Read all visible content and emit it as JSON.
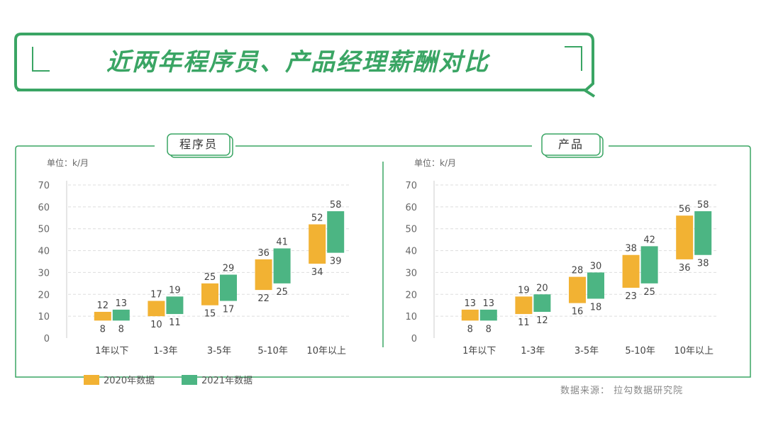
{
  "title": "近两年程序员、产品经理薪酬对比",
  "unit_label": "单位：k/月",
  "source": "数据来源：  拉勾数据研究院",
  "legend": [
    {
      "label": "2020年数据",
      "color": "#f2b233"
    },
    {
      "label": "2021年数据",
      "color": "#4cb583"
    }
  ],
  "colors": {
    "accent": "#3aa564",
    "series_2020": "#f2b233",
    "series_2021": "#4cb583",
    "grid": "#dddddd"
  },
  "chart_data": [
    {
      "type": "bar",
      "title": "程序员",
      "categories": [
        "1年以下",
        "1-3年",
        "3-5年",
        "5-10年",
        "10年以上"
      ],
      "ylim": [
        0,
        70
      ],
      "yticks": [
        0,
        10,
        20,
        30,
        40,
        50,
        60,
        70
      ],
      "ylabel": "单位：k/月",
      "series": [
        {
          "name": "2020年数据",
          "low": [
            8,
            10,
            15,
            22,
            34
          ],
          "high": [
            12,
            17,
            25,
            36,
            52
          ]
        },
        {
          "name": "2021年数据",
          "low": [
            8,
            11,
            17,
            25,
            39
          ],
          "high": [
            13,
            19,
            29,
            41,
            58
          ]
        }
      ]
    },
    {
      "type": "bar",
      "title": "产品",
      "categories": [
        "1年以下",
        "1-3年",
        "3-5年",
        "5-10年",
        "10年以上"
      ],
      "ylim": [
        0,
        70
      ],
      "yticks": [
        0,
        10,
        20,
        30,
        40,
        50,
        60,
        70
      ],
      "ylabel": "单位：k/月",
      "series": [
        {
          "name": "2020年数据",
          "low": [
            8,
            11,
            16,
            23,
            36
          ],
          "high": [
            13,
            19,
            28,
            38,
            56
          ]
        },
        {
          "name": "2021年数据",
          "low": [
            8,
            12,
            18,
            25,
            38
          ],
          "high": [
            13,
            20,
            30,
            42,
            58
          ]
        }
      ]
    }
  ]
}
